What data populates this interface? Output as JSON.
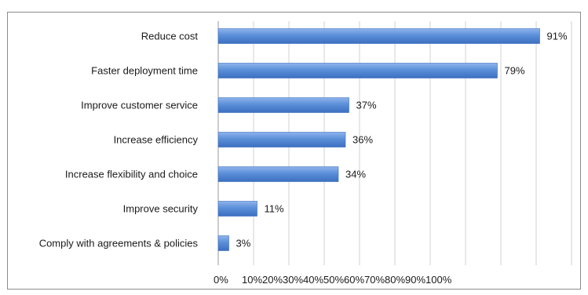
{
  "chart_data": {
    "type": "bar",
    "orientation": "horizontal",
    "categories": [
      "Reduce cost",
      "Faster deployment time",
      "Improve customer service",
      "Increase efficiency",
      "Increase flexibility and choice",
      "Improve security",
      "Comply with agreements & policies"
    ],
    "values": [
      91,
      79,
      37,
      36,
      34,
      11,
      3
    ],
    "data_labels": [
      "91%",
      "79%",
      "37%",
      "36%",
      "34%",
      "11%",
      "3%"
    ],
    "x_ticks": [
      "0%",
      "10%",
      "20%",
      "30%",
      "40%",
      "50%",
      "60%",
      "70%",
      "80%",
      "90%",
      "100%"
    ],
    "xlim": [
      0,
      100
    ],
    "title": "",
    "xlabel": "",
    "ylabel": "",
    "grid": "vertical",
    "legend": "none",
    "colors": {
      "bar_fill": "#5b8fd8",
      "bar_light": "#8fb4ec",
      "bar_dark": "#3c6fc0",
      "grid": "#d0d0d0"
    }
  }
}
